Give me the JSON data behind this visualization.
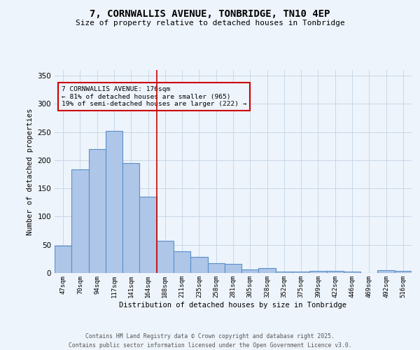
{
  "title": "7, CORNWALLIS AVENUE, TONBRIDGE, TN10 4EP",
  "subtitle": "Size of property relative to detached houses in Tonbridge",
  "xlabel": "Distribution of detached houses by size in Tonbridge",
  "ylabel": "Number of detached properties",
  "footer_line1": "Contains HM Land Registry data © Crown copyright and database right 2025.",
  "footer_line2": "Contains public sector information licensed under the Open Government Licence v3.0.",
  "categories": [
    "47sqm",
    "70sqm",
    "94sqm",
    "117sqm",
    "141sqm",
    "164sqm",
    "188sqm",
    "211sqm",
    "235sqm",
    "258sqm",
    "281sqm",
    "305sqm",
    "328sqm",
    "352sqm",
    "375sqm",
    "399sqm",
    "422sqm",
    "446sqm",
    "469sqm",
    "492sqm",
    "516sqm"
  ],
  "values": [
    48,
    184,
    220,
    252,
    195,
    135,
    57,
    39,
    28,
    17,
    16,
    6,
    9,
    3,
    2,
    4,
    4,
    2,
    0,
    5,
    4
  ],
  "bar_color": "#aec6e8",
  "bar_edge_color": "#5b8fc9",
  "bar_edge_width": 0.8,
  "grid_color": "#c8d8e8",
  "background_color": "#eef4fb",
  "vline_x": 5.5,
  "vline_color": "#cc0000",
  "annotation_text": "7 CORNWALLIS AVENUE: 176sqm\n← 81% of detached houses are smaller (965)\n19% of semi-detached houses are larger (222) →",
  "annotation_box_color": "#cc0000",
  "ylim": [
    0,
    360
  ],
  "yticks": [
    0,
    50,
    100,
    150,
    200,
    250,
    300,
    350
  ]
}
